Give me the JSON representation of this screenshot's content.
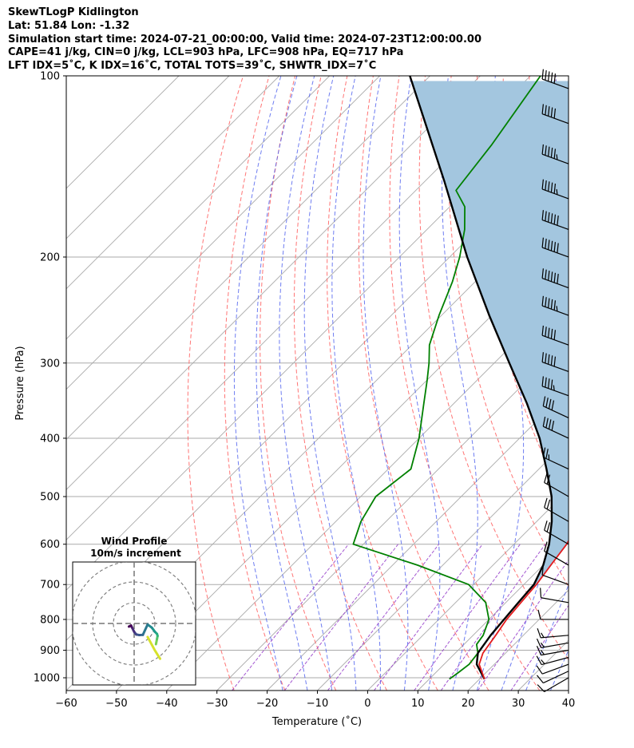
{
  "header": {
    "lines": [
      "SkewTLogP Kidlington",
      "Lat: 51.84   Lon: -1.32",
      "Simulation start time: 2024-07-21_00:00:00, Valid time: 2024-07-23T12:00:00.00",
      "CAPE=41 j/kg, CIN=0 j/kg, LCL=903 hPa, LFC=908 hPa, EQ=717 hPa",
      "LFT IDX=5˚C, K IDX=16˚C, TOTAL TOTS=39˚C, SHWTR_IDX=7˚C"
    ]
  },
  "colors": {
    "temperature": "#e41a1c",
    "dewpoint": "#008000",
    "parcel": "#000000",
    "cape_fill": "#a3c6df",
    "dry_adiabat": "#ff6666",
    "moist_adiabat": "#5566ee",
    "mixing_ratio": "#9944cc",
    "isotherm": "#aaaaaa"
  },
  "chart_data": {
    "type": "line",
    "subtype": "skewt-logp",
    "xlabel": "Temperature (˚C)",
    "ylabel": "Pressure (hPa)",
    "xlim": [
      -60,
      40
    ],
    "ylim": [
      1050,
      100
    ],
    "x_ticks": [
      -60,
      -50,
      -40,
      -30,
      -20,
      -10,
      0,
      10,
      20,
      30,
      40
    ],
    "y_ticks": [
      1000,
      900,
      800,
      700,
      600,
      500,
      400,
      300,
      200,
      100
    ],
    "grid": true,
    "series": [
      {
        "name": "Temperature",
        "color": "#e41a1c",
        "pressure": [
          1005,
          950,
          910,
          850,
          800,
          750,
          700,
          650,
          600,
          550,
          500,
          450,
          400,
          350,
          320,
          300,
          280,
          250,
          220,
          205,
          195,
          180,
          160,
          145,
          120,
          100
        ],
        "temperature": [
          21.0,
          17.0,
          15.5,
          14.5,
          13.5,
          13.0,
          12.5,
          11.5,
          10.5,
          8.5,
          5.5,
          1.0,
          -4.5,
          -11.0,
          -15.0,
          -18.0,
          -21.5,
          -28.5,
          -37.0,
          -42.5,
          -46.0,
          -50.5,
          -55.5,
          -58.5,
          -61.5,
          -64.0
        ]
      },
      {
        "name": "Dewpoint",
        "color": "#008000",
        "pressure": [
          1005,
          980,
          950,
          910,
          880,
          850,
          800,
          750,
          700,
          650,
          600,
          550,
          500,
          450,
          400,
          350,
          320,
          300,
          280,
          250,
          220,
          200,
          180,
          165,
          155,
          130,
          100
        ],
        "temperature": [
          14.0,
          14.5,
          15.0,
          14.5,
          12.5,
          12.0,
          10.0,
          6.0,
          -1.0,
          -15.0,
          -32.0,
          -35.0,
          -37.0,
          -35.5,
          -40.0,
          -46.0,
          -50.0,
          -53.0,
          -56.5,
          -60.5,
          -64.5,
          -68.0,
          -72.5,
          -77.0,
          -82.0,
          -84.0,
          -88.0
        ]
      },
      {
        "name": "Parcel",
        "color": "#000000",
        "pressure": [
          1005,
          950,
          910,
          850,
          800,
          750,
          700,
          650,
          600,
          550,
          500,
          450,
          400,
          350,
          300,
          250,
          200,
          150,
          100
        ],
        "temperature": [
          21.0,
          16.5,
          14.5,
          13.5,
          13.0,
          12.5,
          12.0,
          10.0,
          7.0,
          3.0,
          -2.0,
          -8.5,
          -16.0,
          -25.5,
          -37.0,
          -50.5,
          -66.5,
          -86.0,
          -114.0
        ]
      }
    ],
    "wind_barbs": {
      "unit": "knots",
      "pressure": [
        1000,
        975,
        950,
        925,
        900,
        875,
        850,
        800,
        750,
        700,
        650,
        600,
        550,
        500,
        450,
        400,
        370,
        340,
        310,
        280,
        250,
        225,
        200,
        180,
        160,
        140,
        120,
        105
      ],
      "speed": [
        10,
        12,
        14,
        15,
        16,
        16,
        15,
        12,
        10,
        12,
        18,
        22,
        20,
        22,
        25,
        40,
        40,
        45,
        50,
        50,
        55,
        60,
        60,
        60,
        55,
        55,
        50,
        50
      ],
      "direction": [
        240,
        245,
        250,
        255,
        260,
        260,
        265,
        270,
        280,
        290,
        300,
        300,
        300,
        300,
        295,
        295,
        295,
        290,
        290,
        290,
        290,
        290,
        290,
        290,
        290,
        290,
        290,
        290
      ]
    },
    "hodograph": {
      "title": "Wind Profile",
      "subtitle": "10m/s increment",
      "rings_ms": [
        10,
        20,
        30
      ],
      "u": [
        10.5,
        11.0,
        11.3,
        11.0,
        10.0,
        8.5,
        6.5,
        4.2,
        2.5,
        1.0,
        0.0,
        -1.0,
        -1.5,
        -2.5
      ],
      "v": [
        -10.0,
        -7.5,
        -6.0,
        -5.0,
        -4.0,
        -2.0,
        -0.5,
        -5.5,
        -5.6,
        -5.3,
        -4.0,
        -2.0,
        -1.0,
        -1.5
      ]
    }
  }
}
